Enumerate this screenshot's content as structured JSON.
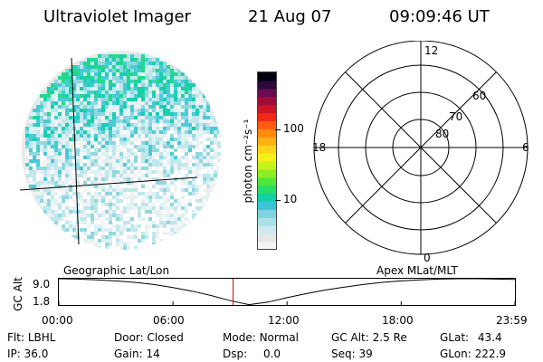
{
  "header": {
    "instrument": "Ultraviolet Imager",
    "date": "21 Aug 07",
    "time": "09:09:46 UT"
  },
  "colorbar": {
    "unit_label": "photon cm⁻²s⁻¹",
    "ticks": [
      {
        "value": 100,
        "label": "100"
      },
      {
        "value": 10,
        "label": "10"
      }
    ],
    "colors": [
      "#f4f4f4",
      "#e6e6e6",
      "#cfe9ee",
      "#a9e1e8",
      "#7fd3de",
      "#39c6d4",
      "#13d0a8",
      "#26dc68",
      "#50e63a",
      "#8cee22",
      "#c7f31c",
      "#f6ef18",
      "#ffd418",
      "#ffb014",
      "#ff8a0c",
      "#ff5a10",
      "#f02a16",
      "#cc1426",
      "#a00c38",
      "#6a0a50",
      "#2a0a3a",
      "#000010"
    ],
    "log_min": 0.3,
    "log_max": 2.8
  },
  "polar_plot": {
    "lat_labels": [
      "80",
      "70",
      "60"
    ],
    "mlt_labels": {
      "top": "12",
      "left": "18",
      "right": "6",
      "bottom": "0"
    }
  },
  "altitude_strip": {
    "ylabel": "GC Alt",
    "y_max_label": "9.0",
    "y_min_label": "1.8",
    "left_title": "Geographic Lat/Lon",
    "right_title": "Apex MLat/MLT",
    "x_tick_labels": [
      "00:00",
      "06:00",
      "12:00",
      "18:00",
      "23:59"
    ],
    "marker_color": "#dd0000"
  },
  "chart_data": {
    "type": "line",
    "title": "",
    "xlabel": "",
    "ylabel": "GC Alt",
    "x_hours": [
      0,
      1,
      2,
      3,
      4,
      5,
      6,
      7,
      8,
      9,
      10,
      11,
      12,
      13,
      14,
      15,
      16,
      17,
      18,
      19,
      20,
      21,
      22,
      23,
      23.98
    ],
    "y_re": [
      9.0,
      8.9,
      8.7,
      8.4,
      8.0,
      7.4,
      6.6,
      5.6,
      4.4,
      3.0,
      1.9,
      2.6,
      3.8,
      4.9,
      5.9,
      6.7,
      7.4,
      8.0,
      8.4,
      8.7,
      8.9,
      9.0,
      9.0,
      8.9,
      8.8
    ],
    "xlim": [
      0,
      23.98
    ],
    "ylim": [
      1.8,
      9.0
    ],
    "marker_x": 9.163
  },
  "info": {
    "filter": {
      "label": "Flt:",
      "value": "LBHL"
    },
    "ip": {
      "label": "IP:",
      "value": "36.0"
    },
    "door": {
      "label": "Door:",
      "value": "Closed"
    },
    "gain": {
      "label": "Gain:",
      "value": "14"
    },
    "mode": {
      "label": "Mode:",
      "value": "Normal"
    },
    "dsp": {
      "label": "Dsp:",
      "value": "0.0"
    },
    "gc_alt": {
      "label": "GC Alt:",
      "value": "2.5 Re"
    },
    "seq": {
      "label": "Seq:",
      "value": "39"
    },
    "glat": {
      "label": "GLat:",
      "value": "43.4"
    },
    "glon": {
      "label": "GLon:",
      "value": "222.9"
    }
  }
}
